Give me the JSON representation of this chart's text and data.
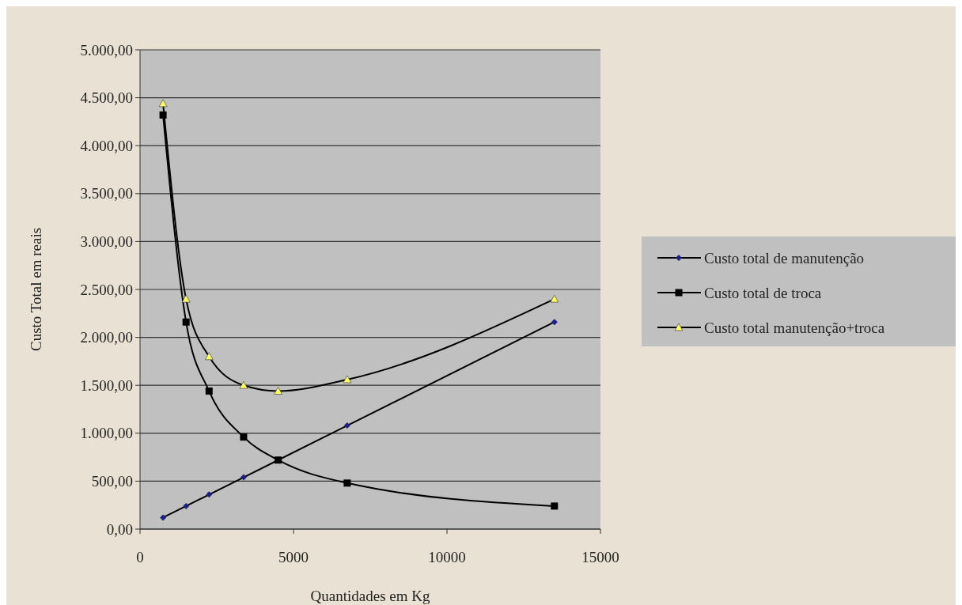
{
  "chart_data": {
    "type": "line",
    "xlabel": "Quantidades em Kg",
    "ylabel": "Custo Total em reais",
    "xlim": [
      0,
      15000
    ],
    "xticks": [
      0,
      5000,
      10000,
      15000
    ],
    "ylim": [
      0,
      5000
    ],
    "yticks": [
      {
        "value": 0,
        "label": "0,00"
      },
      {
        "value": 500,
        "label": "500,00"
      },
      {
        "value": 1000,
        "label": "1.000,00"
      },
      {
        "value": 1500,
        "label": "1.500,00"
      },
      {
        "value": 2000,
        "label": "2.000,00"
      },
      {
        "value": 2500,
        "label": "2.500,00"
      },
      {
        "value": 3000,
        "label": "3.000,00"
      },
      {
        "value": 3500,
        "label": "3.500,00"
      },
      {
        "value": 4000,
        "label": "4.000,00"
      },
      {
        "value": 4500,
        "label": "4.500,00"
      },
      {
        "value": 5000,
        "label": "5.000,00"
      }
    ],
    "grid": "y",
    "legend": "right",
    "x": [
      750,
      1500,
      2250,
      3375,
      4500,
      6750,
      13500
    ],
    "series": [
      {
        "name": "Custo total de manutenção",
        "color": "#1f1f80",
        "marker": "diamond",
        "values": [
          120,
          240,
          360,
          540,
          720,
          1080,
          2160
        ]
      },
      {
        "name": "Custo total de troca",
        "color": "#000000",
        "marker": "square",
        "values": [
          4320,
          2160,
          1440,
          960,
          720,
          480,
          240
        ]
      },
      {
        "name": "Custo total manutenção+troca",
        "color": "#ffff66",
        "marker": "triangle",
        "values": [
          4440,
          2400,
          1800,
          1500,
          1440,
          1560,
          2400
        ]
      }
    ]
  }
}
